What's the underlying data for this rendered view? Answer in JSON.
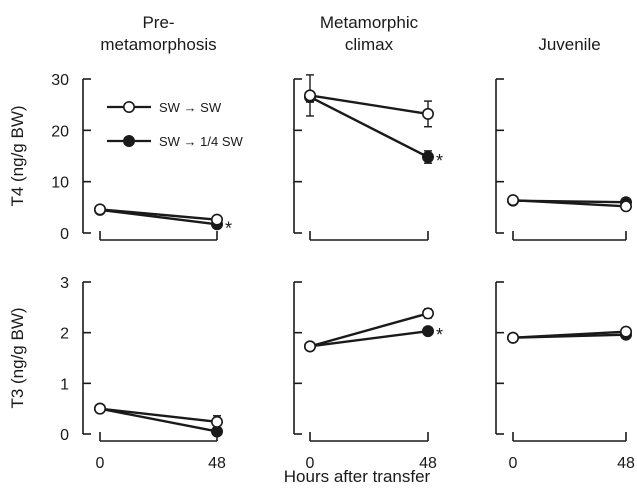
{
  "chart_data": {
    "type": "line",
    "xlabel": "Hours after transfer",
    "x_ticks": [
      "0",
      "48"
    ],
    "legend": {
      "placement": "top-left",
      "entries": [
        {
          "label": "SW → SW",
          "marker": "open-circle"
        },
        {
          "label": "SW → 1/4 SW",
          "marker": "filled-circle"
        }
      ]
    },
    "rows": [
      {
        "ylabel": "T4 (ng/g BW)",
        "ylim": [
          0,
          30
        ],
        "y_ticks": [
          "0",
          "10",
          "20",
          "30"
        ],
        "panels": [
          {
            "title": "Pre-metamorphosis",
            "title_lines": [
              "Pre-",
              "metamorphosis"
            ],
            "x": [
              0,
              48
            ],
            "series": [
              {
                "label": "SW → SW",
                "marker": "open",
                "values": [
                  4.6,
                  2.6
                ],
                "errors": [
                  0.3,
                  0.5
                ]
              },
              {
                "label": "SW → 1/4 SW",
                "marker": "filled",
                "values": [
                  4.5,
                  1.7
                ],
                "errors": [
                  0.3,
                  0.3
                ]
              }
            ],
            "annotation": "*"
          },
          {
            "title": "Metamorphic climax",
            "title_lines": [
              "Metamorphic",
              "climax"
            ],
            "x": [
              0,
              48
            ],
            "series": [
              {
                "label": "SW → SW",
                "marker": "open",
                "values": [
                  26.8,
                  23.2
                ],
                "errors": [
                  4.0,
                  2.5
                ]
              },
              {
                "label": "SW → 1/4 SW",
                "marker": "filled",
                "values": [
                  26.5,
                  14.8
                ],
                "errors": [
                  1.0,
                  1.2
                ]
              }
            ],
            "annotation": "*"
          },
          {
            "title": "Juvenile",
            "title_lines": [
              "Juvenile"
            ],
            "x": [
              0,
              48
            ],
            "series": [
              {
                "label": "SW → SW",
                "marker": "open",
                "values": [
                  6.4,
                  5.2
                ],
                "errors": [
                  0.3,
                  0.3
                ]
              },
              {
                "label": "SW → 1/4 SW",
                "marker": "filled",
                "values": [
                  6.3,
                  6.0
                ],
                "errors": [
                  0.3,
                  0.3
                ]
              }
            ],
            "annotation": ""
          }
        ]
      },
      {
        "ylabel": "T3 (ng/g BW)",
        "ylim": [
          0,
          3
        ],
        "y_ticks": [
          "0",
          "1",
          "2",
          "3"
        ],
        "panels": [
          {
            "x": [
              0,
              48
            ],
            "series": [
              {
                "label": "SW → SW",
                "marker": "open",
                "values": [
                  0.5,
                  0.24
                ],
                "errors": [
                  0.03,
                  0.12
                ]
              },
              {
                "label": "SW → 1/4 SW",
                "marker": "filled",
                "values": [
                  0.5,
                  0.05
                ],
                "errors": [
                  0.03,
                  0.06
                ]
              }
            ],
            "annotation": ""
          },
          {
            "x": [
              0,
              48
            ],
            "series": [
              {
                "label": "SW → SW",
                "marker": "open",
                "values": [
                  1.73,
                  2.38
                ],
                "errors": [
                  0.04,
                  0.09
                ]
              },
              {
                "label": "SW → 1/4 SW",
                "marker": "filled",
                "values": [
                  1.73,
                  2.03
                ],
                "errors": [
                  0.04,
                  0.05
                ]
              }
            ],
            "annotation": "*"
          },
          {
            "x": [
              0,
              48
            ],
            "series": [
              {
                "label": "SW → SW",
                "marker": "open",
                "values": [
                  1.9,
                  2.02
                ],
                "errors": [
                  0.03,
                  0.06
                ]
              },
              {
                "label": "SW → 1/4 SW",
                "marker": "filled",
                "values": [
                  1.9,
                  1.96
                ],
                "errors": [
                  0.03,
                  0.06
                ]
              }
            ],
            "annotation": ""
          }
        ]
      }
    ]
  }
}
